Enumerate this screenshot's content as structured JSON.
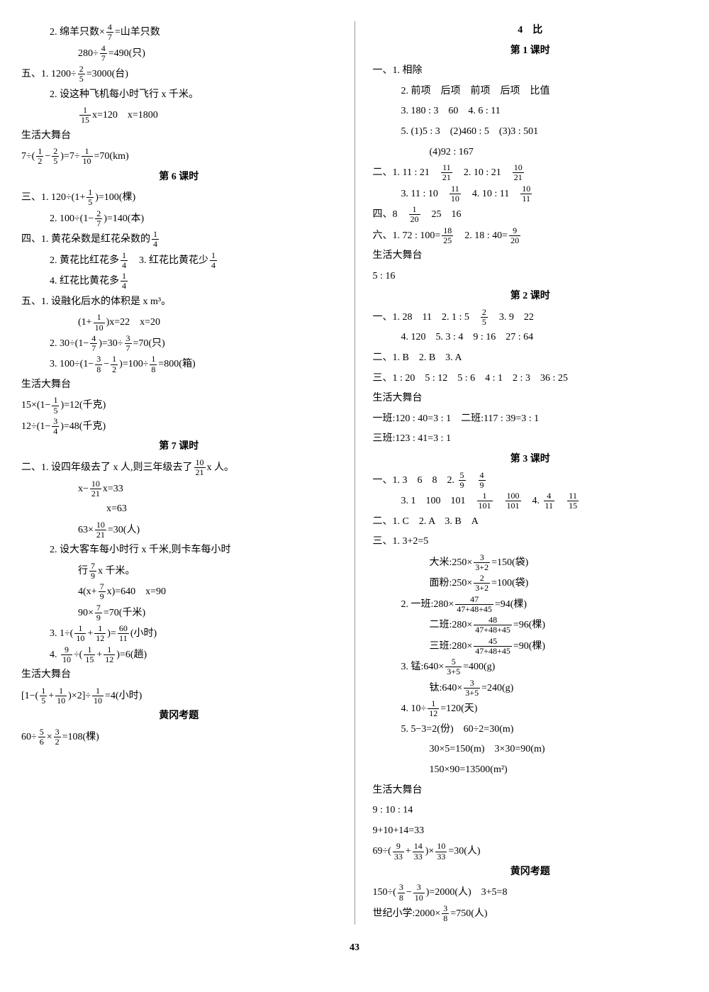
{
  "page_number": "43",
  "left": {
    "l1": "2. 绵羊只数×",
    "l1b": "=山羊只数",
    "l2a": "280÷",
    "l2b": "=490(只)",
    "l3a": "五、1. 1200÷",
    "l3b": "=3000(台)",
    "l4": "2. 设这种飞机每小时飞行 x 千米。",
    "l5a_pre": "",
    "l5a": "x=120　x=1800",
    "l6": "生活大舞台",
    "l7a": "7÷(",
    "l7b": "−",
    "l7c": ")=7÷",
    "l7d": "=70(km)",
    "h6": "第 6 课时",
    "l8a": "三、1. 120÷(1+",
    "l8b": ")=100(棵)",
    "l9a": "2. 100÷(1−",
    "l9b": ")=140(本)",
    "l10a": "四、1. 黄花朵数是红花朵数的",
    "l11a": "2. 黄花比红花多",
    "l11b": "　3. 红花比黄花少",
    "l12a": "4. 红花比黄花多",
    "l13": "五、1. 设融化后水的体积是 x m³。",
    "l14a": "(1+",
    "l14b": ")x=22　x=20",
    "l15a": "2. 30÷(1−",
    "l15b": ")=30÷",
    "l15c": "=70(只)",
    "l16a": "3. 100÷(1−",
    "l16b": "−",
    "l16c": ")=100÷",
    "l16d": "=800(箱)",
    "l17": "生活大舞台",
    "l18a": "15×(1−",
    "l18b": ")=12(千克)",
    "l19a": "12÷(1−",
    "l19b": ")=48(千克)",
    "h7": "第 7 课时",
    "l20a": "二、1. 设四年级去了 x 人,则三年级去了",
    "l20b": "x 人。",
    "l21a": "x−",
    "l21b": "x=33",
    "l22": "x=63",
    "l23a": "63×",
    "l23b": "=30(人)",
    "l24": "2. 设大客车每小时行 x 千米,则卡车每小时",
    "l25a": "行",
    "l25b": "x 千米。",
    "l26a": "4(x+",
    "l26b": "x)=640　x=90",
    "l27a": "90×",
    "l27b": "=70(千米)",
    "l28a": "3. 1÷(",
    "l28b": "+",
    "l28c": ")=",
    "l28d": "(小时)",
    "l29a": "4. ",
    "l29b": "÷(",
    "l29c": "+",
    "l29d": ")=6(趟)",
    "l30": "生活大舞台",
    "l31a": "[1−(",
    "l31b": "+",
    "l31c": ")×2]÷",
    "l31d": "=4(小时)",
    "hhg1": "黄冈考题",
    "l32a": "60÷",
    "l32b": "×",
    "l32c": "=108(棵)"
  },
  "right": {
    "title": "4　比",
    "h1": "第 1 课时",
    "r1": "一、1. 相除",
    "r2": "2. 前项　后项　前项　后项　比值",
    "r3": "3. 180 : 3　60　4. 6 : 11",
    "r4": "5. (1)5 : 3　(2)460 : 5　(3)3 : 501",
    "r5": "(4)92 : 167",
    "r6a": "二、1. 11 : 21　",
    "r6b": "　2. 10 : 21　",
    "r7a": "3. 11 : 10　",
    "r7b": "　4. 10 : 11　",
    "r8a": "四、8　",
    "r8b": "　25　16",
    "r9a": "六、1. 72 : 100=",
    "r9b": "　2. 18 : 40=",
    "r10": "生活大舞台",
    "r11": "5 : 16",
    "h2": "第 2 课时",
    "r12a": "一、1. 28　11　2. 1 : 5　",
    "r12b": "　3. 9　22",
    "r13": "4. 120　5. 3 : 4　9 : 16　27 : 64",
    "r14": "二、1. B　2. B　3. A",
    "r15": "三、1 : 20　5 : 12　5 : 6　4 : 1　2 : 3　36 : 25",
    "r16": "生活大舞台",
    "r17": "一班:120 : 40=3 : 1　二班:117 : 39=3 : 1",
    "r18": "三班:123 : 41=3 : 1",
    "h3": "第 3 课时",
    "r19a": "一、1. 3　6　8　2. ",
    "r19b": "　",
    "r20a": "3. 1　100　101　",
    "r20b": "　",
    "r20c": "　4. ",
    "r20d": "　",
    "r21": "二、1. C　2. A　3. B　A",
    "r22": "三、1. 3+2=5",
    "r23a": "大米:250×",
    "r23b": "=150(袋)",
    "r24a": "面粉:250×",
    "r24b": "=100(袋)",
    "r25a": "2. 一班:280×",
    "r25b": "=94(棵)",
    "r26a": "二班:280×",
    "r26b": "=96(棵)",
    "r27a": "三班:280×",
    "r27b": "=90(棵)",
    "r28a": "3. 锰:640×",
    "r28b": "=400(g)",
    "r29a": "钛:640×",
    "r29b": "=240(g)",
    "r30a": "4. 10÷",
    "r30b": "=120(天)",
    "r31": "5. 5−3=2(份)　60÷2=30(m)",
    "r32": "30×5=150(m)　3×30=90(m)",
    "r33": "150×90=13500(m²)",
    "r34": "生活大舞台",
    "r35": "9 : 10 : 14",
    "r36": "9+10+14=33",
    "r37a": "69÷(",
    "r37b": "+",
    "r37c": ")×",
    "r37d": "=30(人)",
    "hhg2": "黄冈考题",
    "r38a": "150÷(",
    "r38b": "−",
    "r38c": ")=2000(人)　3+5=8",
    "r39a": "世纪小学:2000×",
    "r39b": "=750(人)"
  },
  "fracs": {
    "f4_7": {
      "n": "4",
      "d": "7"
    },
    "f2_5": {
      "n": "2",
      "d": "5"
    },
    "f1_15": {
      "n": "1",
      "d": "15"
    },
    "f1_2": {
      "n": "1",
      "d": "2"
    },
    "f1_10": {
      "n": "1",
      "d": "10"
    },
    "f1_5": {
      "n": "1",
      "d": "5"
    },
    "f2_7": {
      "n": "2",
      "d": "7"
    },
    "f1_4": {
      "n": "1",
      "d": "4"
    },
    "f3_7": {
      "n": "3",
      "d": "7"
    },
    "f3_8": {
      "n": "3",
      "d": "8"
    },
    "f1_8": {
      "n": "1",
      "d": "8"
    },
    "f3_4": {
      "n": "3",
      "d": "4"
    },
    "f10_21": {
      "n": "10",
      "d": "21"
    },
    "f7_9": {
      "n": "7",
      "d": "9"
    },
    "f1_12": {
      "n": "1",
      "d": "12"
    },
    "f60_11": {
      "n": "60",
      "d": "11"
    },
    "f9_10": {
      "n": "9",
      "d": "10"
    },
    "f5_6": {
      "n": "5",
      "d": "6"
    },
    "f3_2": {
      "n": "3",
      "d": "2"
    },
    "f11_21": {
      "n": "11",
      "d": "21"
    },
    "f11_10": {
      "n": "11",
      "d": "10"
    },
    "f10_11": {
      "n": "10",
      "d": "11"
    },
    "f1_20": {
      "n": "1",
      "d": "20"
    },
    "f18_25": {
      "n": "18",
      "d": "25"
    },
    "f9_20": {
      "n": "9",
      "d": "20"
    },
    "f2_5b": {
      "n": "2",
      "d": "5"
    },
    "f5_9": {
      "n": "5",
      "d": "9"
    },
    "f4_9": {
      "n": "4",
      "d": "9"
    },
    "f1_101": {
      "n": "1",
      "d": "101"
    },
    "f100_101": {
      "n": "100",
      "d": "101"
    },
    "f4_11": {
      "n": "4",
      "d": "11"
    },
    "f11_15": {
      "n": "11",
      "d": "15"
    },
    "f3_32": {
      "n": "3",
      "d": "3+2"
    },
    "f2_32": {
      "n": "2",
      "d": "3+2"
    },
    "f47": {
      "n": "47",
      "d": "47+48+45"
    },
    "f48": {
      "n": "48",
      "d": "47+48+45"
    },
    "f45": {
      "n": "45",
      "d": "47+48+45"
    },
    "f5_35": {
      "n": "5",
      "d": "3+5"
    },
    "f3_35": {
      "n": "3",
      "d": "3+5"
    },
    "f9_33": {
      "n": "9",
      "d": "33"
    },
    "f14_33": {
      "n": "14",
      "d": "33"
    },
    "f10_33": {
      "n": "10",
      "d": "33"
    },
    "f3_10": {
      "n": "3",
      "d": "10"
    }
  }
}
